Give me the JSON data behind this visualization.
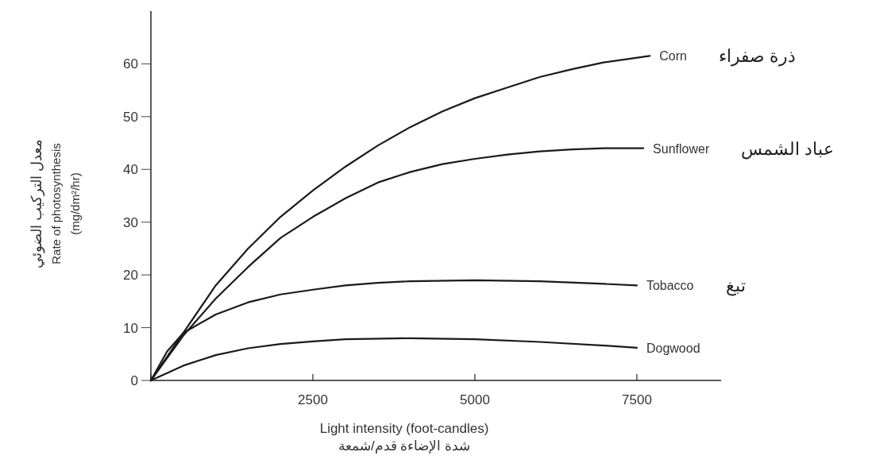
{
  "chart_data": {
    "type": "line",
    "xlabel": "Light intensity (foot-candles)\nشدة الإضاءة قدم/شمعة",
    "ylabel": "معدل التركيب الضوئي\nRate of photosynthesis\n(mg/dm²/hr)",
    "xlim": [
      0,
      8800
    ],
    "ylim": [
      0,
      70
    ],
    "xticks": [
      {
        "value": 0,
        "label": null
      },
      2500,
      5000,
      7500
    ],
    "yticks": [
      0,
      10,
      20,
      30,
      40,
      50,
      60
    ],
    "grid": false,
    "legend": false,
    "marker": "none",
    "line_style": "solid",
    "series": [
      {
        "name": "Corn",
        "color": "#1a1a1a",
        "x": [
          0,
          500,
          1000,
          1500,
          2000,
          2500,
          3000,
          3500,
          4000,
          4500,
          5000,
          5500,
          6000,
          6500,
          7000,
          7700
        ],
        "values": [
          0,
          9,
          18,
          25,
          31,
          36,
          40.5,
          44.5,
          48,
          51,
          53.5,
          55.5,
          57.5,
          59,
          60.3,
          61.5
        ]
      },
      {
        "name": "Sunflower",
        "color": "#1a1a1a",
        "x": [
          0,
          500,
          1000,
          1500,
          2000,
          2500,
          3000,
          3500,
          4000,
          4500,
          5000,
          5500,
          6000,
          6500,
          7000,
          7600
        ],
        "values": [
          0,
          8.5,
          15.5,
          21.5,
          27,
          31,
          34.5,
          37.5,
          39.5,
          41,
          42,
          42.8,
          43.4,
          43.8,
          44,
          44
        ]
      },
      {
        "name": "Tobacco",
        "color": "#1a1a1a",
        "x": [
          0,
          250,
          500,
          1000,
          1500,
          2000,
          2500,
          3000,
          3500,
          4000,
          5000,
          6000,
          7000,
          7500
        ],
        "values": [
          0,
          5.5,
          9,
          12.5,
          14.8,
          16.3,
          17.2,
          18,
          18.5,
          18.8,
          19,
          18.8,
          18.3,
          18
        ]
      },
      {
        "name": "Dogwood",
        "color": "#1a1a1a",
        "x": [
          0,
          500,
          1000,
          1500,
          2000,
          2500,
          3000,
          4000,
          5000,
          6000,
          7000,
          7500
        ],
        "values": [
          0,
          2.8,
          4.8,
          6.1,
          6.9,
          7.4,
          7.8,
          8,
          7.8,
          7.3,
          6.6,
          6.2
        ]
      }
    ],
    "annotations": [
      "ذرة صفراء",
      "عباد الشمس",
      "تبغ"
    ]
  }
}
